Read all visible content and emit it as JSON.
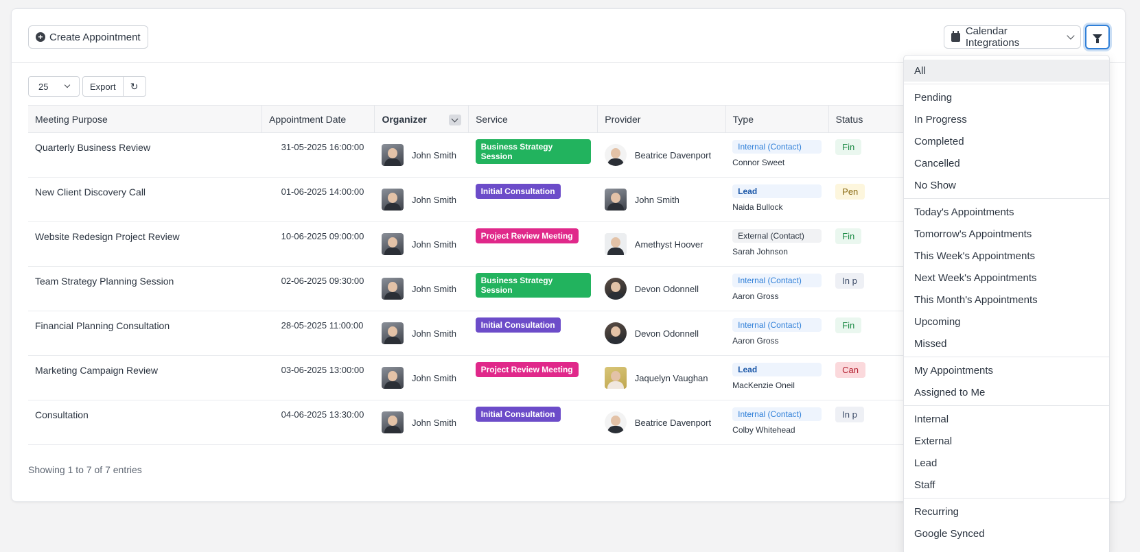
{
  "header": {
    "create_label": "Create Appointment",
    "calendar_label": "Calendar Integrations"
  },
  "toolbar": {
    "page_size": "25",
    "export_label": "Export"
  },
  "table": {
    "columns": [
      "Meeting Purpose",
      "Appointment Date",
      "Organizer",
      "Service",
      "Provider",
      "Type",
      "Status"
    ],
    "rows": [
      {
        "purpose": "Quarterly Business Review",
        "date": "31-05-2025 16:00:00",
        "organizer": "John Smith",
        "service": "Business Strategy Session",
        "service_color": "#22b35e",
        "provider": "Beatrice Davenport",
        "type": "Internal (Contact)",
        "contact": "Connor Sweet",
        "status": "Finished"
      },
      {
        "purpose": "New Client Discovery Call",
        "date": "01-06-2025 14:00:00",
        "organizer": "John Smith",
        "service": "Initial Consultation",
        "service_color": "#6c4cc9",
        "provider": "John Smith",
        "type": "Lead",
        "contact": "Naida Bullock",
        "status": "Pending"
      },
      {
        "purpose": "Website Redesign Project Review",
        "date": "10-06-2025 09:00:00",
        "organizer": "John Smith",
        "service": "Project Review Meeting",
        "service_color": "#e0288a",
        "provider": "Amethyst Hoover",
        "type": "External (Contact)",
        "contact": "Sarah Johnson",
        "status": "Finished"
      },
      {
        "purpose": "Team Strategy Planning Session",
        "date": "02-06-2025 09:30:00",
        "organizer": "John Smith",
        "service": "Business Strategy Session",
        "service_color": "#22b35e",
        "provider": "Devon Odonnell",
        "type": "Internal (Contact)",
        "contact": "Aaron Gross",
        "status": "In progress"
      },
      {
        "purpose": "Financial Planning Consultation",
        "date": "28-05-2025 11:00:00",
        "organizer": "John Smith",
        "service": "Initial Consultation",
        "service_color": "#6c4cc9",
        "provider": "Devon Odonnell",
        "type": "Internal (Contact)",
        "contact": "Aaron Gross",
        "status": "Finished"
      },
      {
        "purpose": "Marketing Campaign Review",
        "date": "03-06-2025 13:00:00",
        "organizer": "John Smith",
        "service": "Project Review Meeting",
        "service_color": "#e0288a",
        "provider": "Jaquelyn Vaughan",
        "type": "Lead",
        "contact": "MacKenzie Oneil",
        "status": "Cancelled"
      },
      {
        "purpose": "Consultation",
        "date": "04-06-2025 13:30:00",
        "organizer": "John Smith",
        "service": "Initial Consultation",
        "service_color": "#6c4cc9",
        "provider": "Beatrice Davenport",
        "type": "Internal (Contact)",
        "contact": "Colby Whitehead",
        "status": "In progress"
      }
    ]
  },
  "footer": {
    "entries_text": "Showing 1 to 7 of 7 entries"
  },
  "filter_menu": {
    "groups": [
      [
        "All"
      ],
      [
        "Pending",
        "In Progress",
        "Completed",
        "Cancelled",
        "No Show"
      ],
      [
        "Today's Appointments",
        "Tomorrow's Appointments",
        "This Week's Appointments",
        "Next Week's Appointments",
        "This Month's Appointments",
        "Upcoming",
        "Missed"
      ],
      [
        "My Appointments",
        "Assigned to Me"
      ],
      [
        "Internal",
        "External",
        "Lead",
        "Staff"
      ],
      [
        "Recurring",
        "Google Synced"
      ]
    ],
    "active": "All"
  },
  "icons": {
    "create": "plus-circle-icon",
    "calendar": "calendar-icon",
    "filter": "funnel-icon",
    "refresh": "refresh-icon"
  }
}
